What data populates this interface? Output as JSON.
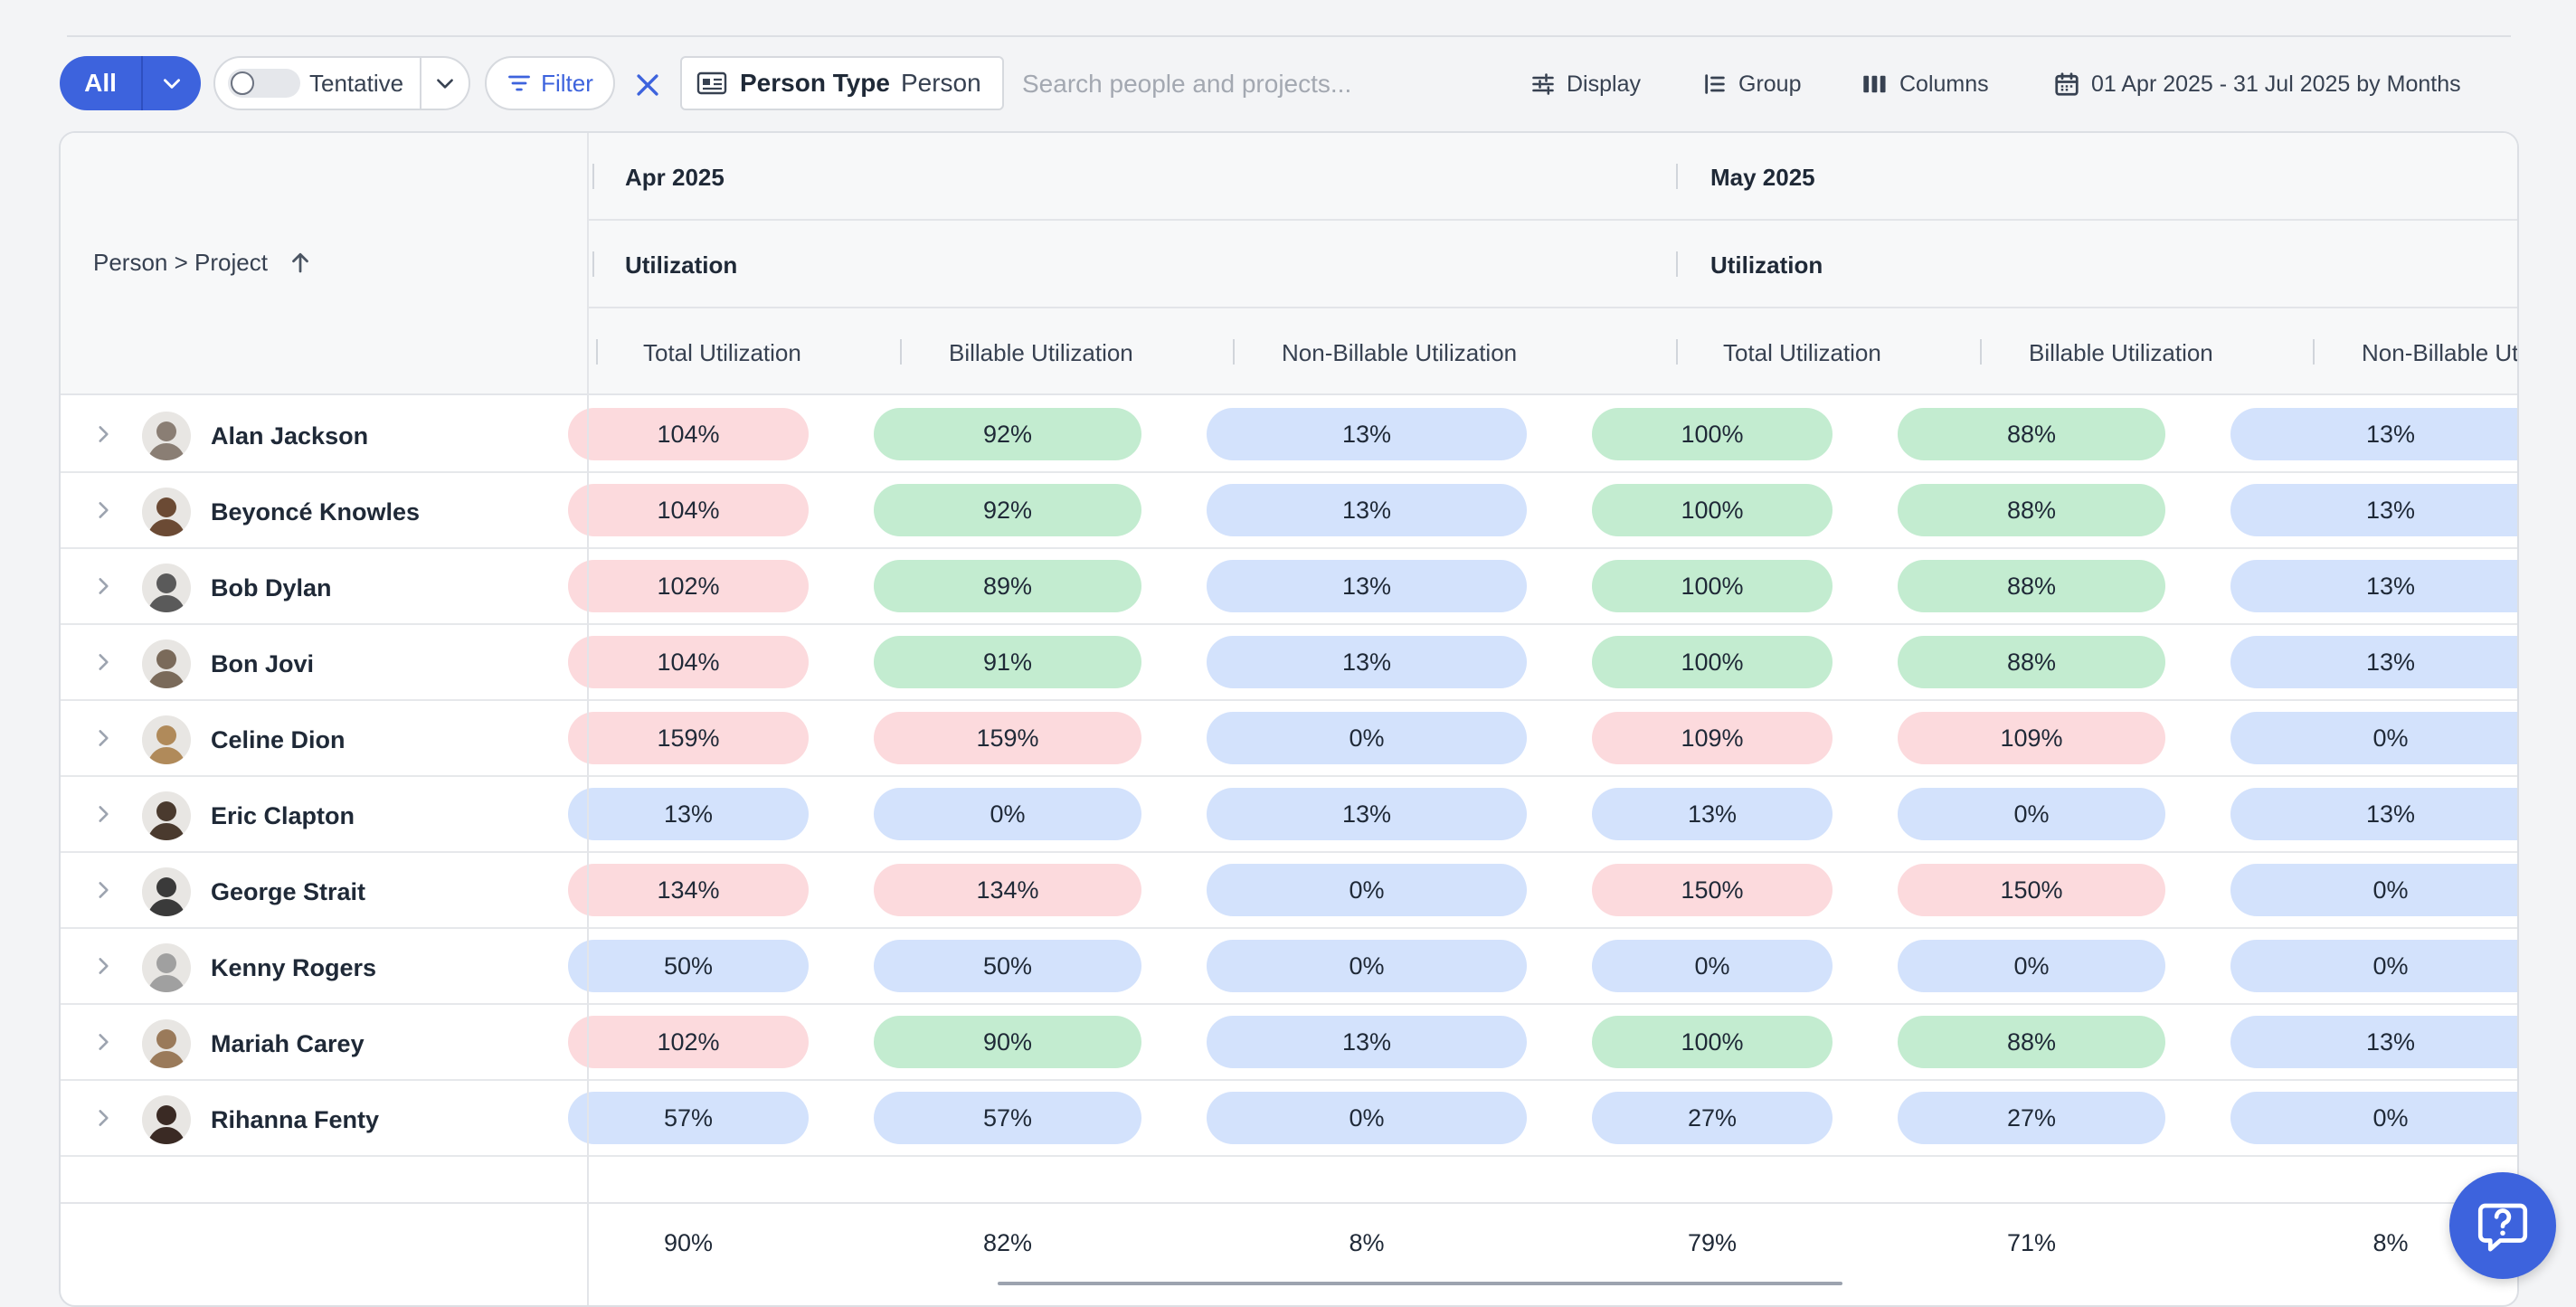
{
  "toolbar": {
    "all_label": "All",
    "tentative_label": "Tentative",
    "filter_label": "Filter",
    "chip_key": "Person Type",
    "chip_value": "Person",
    "search_placeholder": "Search people and projects...",
    "display_label": "Display",
    "group_label": "Group",
    "columns_label": "Columns",
    "date_range_label": "01 Apr 2025 - 31 Jul 2025 by Months"
  },
  "table": {
    "first_col_header": "Person > Project",
    "months": [
      {
        "label": "Apr 2025",
        "group": "Utilization"
      },
      {
        "label": "May 2025",
        "group": "Utilization"
      }
    ],
    "sub_headers": [
      "Total Utilization",
      "Billable Utilization",
      "Non-Billable Utilization",
      "Total Utilization",
      "Billable Utilization",
      "Non-Billable Utilizati"
    ],
    "rows": [
      {
        "name": "Alan Jackson",
        "values": [
          "104%",
          "92%",
          "13%",
          "100%",
          "88%",
          "13%"
        ],
        "status": [
          "red",
          "green",
          "blue",
          "green",
          "green",
          "blue"
        ]
      },
      {
        "name": "Beyoncé Knowles",
        "values": [
          "104%",
          "92%",
          "13%",
          "100%",
          "88%",
          "13%"
        ],
        "status": [
          "red",
          "green",
          "blue",
          "green",
          "green",
          "blue"
        ]
      },
      {
        "name": "Bob Dylan",
        "values": [
          "102%",
          "89%",
          "13%",
          "100%",
          "88%",
          "13%"
        ],
        "status": [
          "red",
          "green",
          "blue",
          "green",
          "green",
          "blue"
        ]
      },
      {
        "name": "Bon Jovi",
        "values": [
          "104%",
          "91%",
          "13%",
          "100%",
          "88%",
          "13%"
        ],
        "status": [
          "red",
          "green",
          "blue",
          "green",
          "green",
          "blue"
        ]
      },
      {
        "name": "Celine Dion",
        "values": [
          "159%",
          "159%",
          "0%",
          "109%",
          "109%",
          "0%"
        ],
        "status": [
          "red",
          "red",
          "blue",
          "red",
          "red",
          "blue"
        ]
      },
      {
        "name": "Eric Clapton",
        "values": [
          "13%",
          "0%",
          "13%",
          "13%",
          "0%",
          "13%"
        ],
        "status": [
          "blue",
          "blue",
          "blue",
          "blue",
          "blue",
          "blue"
        ]
      },
      {
        "name": "George Strait",
        "values": [
          "134%",
          "134%",
          "0%",
          "150%",
          "150%",
          "0%"
        ],
        "status": [
          "red",
          "red",
          "blue",
          "red",
          "red",
          "blue"
        ]
      },
      {
        "name": "Kenny Rogers",
        "values": [
          "50%",
          "50%",
          "0%",
          "0%",
          "0%",
          "0%"
        ],
        "status": [
          "blue",
          "blue",
          "blue",
          "blue",
          "blue",
          "blue"
        ]
      },
      {
        "name": "Mariah Carey",
        "values": [
          "102%",
          "90%",
          "13%",
          "100%",
          "88%",
          "13%"
        ],
        "status": [
          "red",
          "green",
          "blue",
          "green",
          "green",
          "blue"
        ]
      },
      {
        "name": "Rihanna Fenty",
        "values": [
          "57%",
          "57%",
          "0%",
          "27%",
          "27%",
          "0%"
        ],
        "status": [
          "blue",
          "blue",
          "blue",
          "blue",
          "blue",
          "blue"
        ]
      }
    ],
    "totals": [
      "90%",
      "82%",
      "8%",
      "79%",
      "71%",
      "8%"
    ]
  },
  "colors": {
    "accent": "#3d63dd",
    "over_allocated": "#fcdadd",
    "on_target": "#c3ecd0",
    "under_allocated": "#d3e2fc"
  },
  "icons": {
    "all_caret": "chevron-down-icon",
    "filter": "filter-icon",
    "clear": "close-icon",
    "person_type": "id-card-icon",
    "display": "sliders-icon",
    "group": "list-group-icon",
    "columns": "columns-icon",
    "date": "calendar-icon",
    "sort": "arrow-up-icon",
    "expand": "chevron-right-icon",
    "help": "chat-help-icon"
  }
}
